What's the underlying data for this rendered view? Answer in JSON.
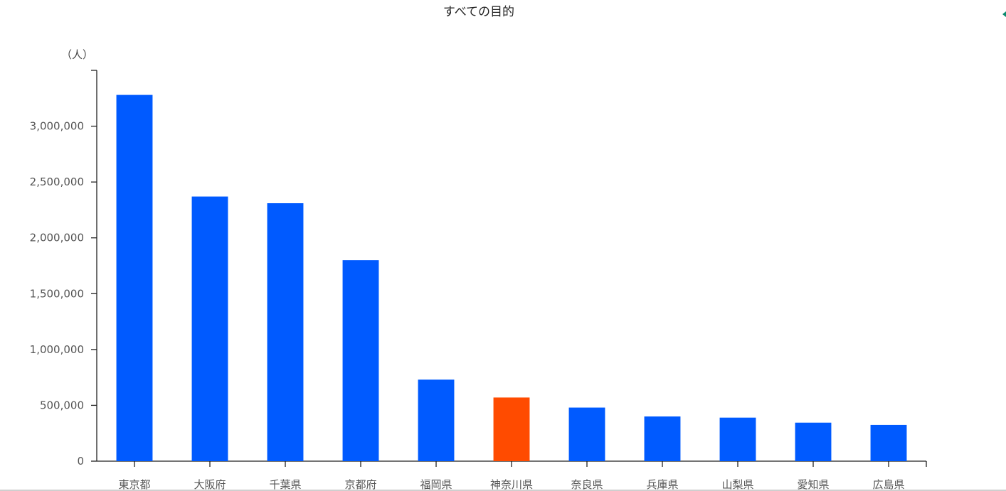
{
  "chart_data": {
    "type": "bar",
    "title": "すべての目的",
    "ylabel": "（人）",
    "xlabel": "",
    "categories": [
      "東京都",
      "大阪府",
      "千葉県",
      "京都府",
      "福岡県",
      "神奈川県",
      "奈良県",
      "兵庫県",
      "山梨県",
      "愛知県",
      "広島県"
    ],
    "values": [
      3280000,
      2370000,
      2310000,
      1800000,
      730000,
      570000,
      480000,
      400000,
      390000,
      345000,
      325000
    ],
    "highlight_category": "神奈川県",
    "ylim": [
      0,
      3500000
    ],
    "yticks": [
      0,
      500000,
      1000000,
      1500000,
      2000000,
      2500000,
      3000000
    ],
    "ytick_labels": [
      "0",
      "500,000",
      "1,000,000",
      "1,500,000",
      "2,000,000",
      "2,500,000",
      "3,000,000"
    ],
    "grid": false,
    "legend": "none",
    "colors": {
      "bar": "#005aff",
      "highlight": "#ff4b00",
      "axis": "#222222",
      "tick_text": "#555555"
    }
  }
}
